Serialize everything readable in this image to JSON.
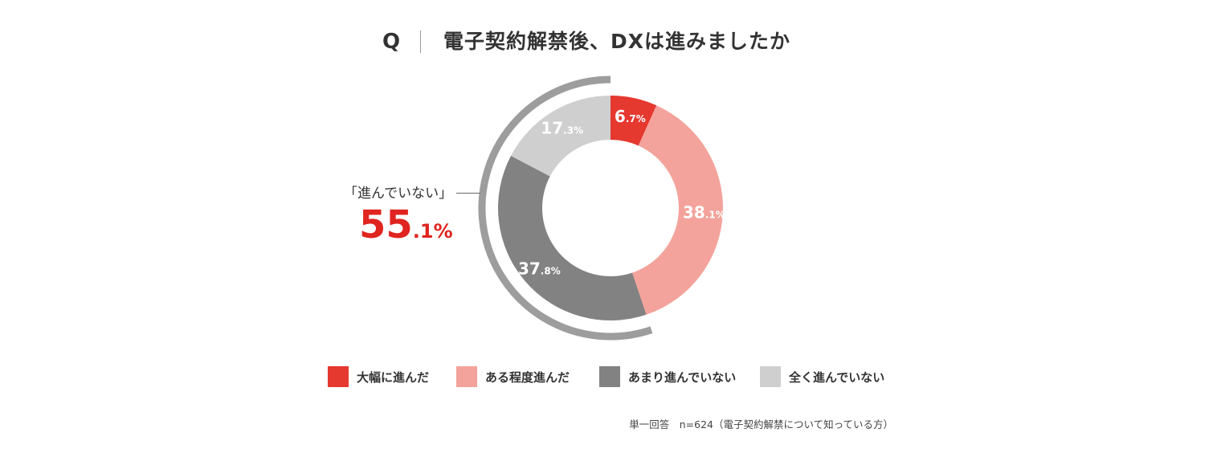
{
  "title_bar": {
    "q_mark": "Q",
    "title": "電子契約解禁後、DXは進みましたか"
  },
  "callout": {
    "label": "「進んでいない」",
    "value_main": "55",
    "value_decimal": ".1%"
  },
  "note": "単一回答　n=624（電子契約解禁について知っている方）",
  "chart_data": {
    "type": "pie",
    "variant": "donut",
    "title": "電子契約解禁後、DXは進みましたか",
    "categories": [
      "大幅に進んだ",
      "ある程度進んだ",
      "あまり進んでいない",
      "全く進んでいない"
    ],
    "values": [
      6.7,
      38.1,
      37.8,
      17.3
    ],
    "label_main": [
      "6",
      "38",
      "37",
      "17"
    ],
    "label_decimal": [
      ".7%",
      ".1%",
      ".8%",
      ".3%"
    ],
    "colors": [
      "#e5382e",
      "#f3a39b",
      "#828282",
      "#cfcfcf"
    ],
    "label_colors": [
      "#ffffff",
      "#ffffff",
      "#ffffff",
      "#ffffff"
    ],
    "legend_position": "bottom",
    "start": "top",
    "direction": "clockwise"
  }
}
